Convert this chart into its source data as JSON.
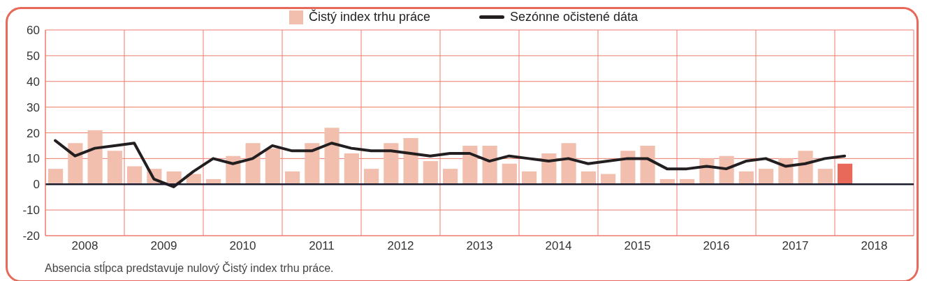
{
  "chart_data": {
    "type": "bar",
    "x": [
      2008.125,
      2008.375,
      2008.625,
      2008.875,
      2009.125,
      2009.375,
      2009.625,
      2009.875,
      2010.125,
      2010.375,
      2010.625,
      2010.875,
      2011.125,
      2011.375,
      2011.625,
      2011.875,
      2012.125,
      2012.375,
      2012.625,
      2012.875,
      2013.125,
      2013.375,
      2013.625,
      2013.875,
      2014.125,
      2014.375,
      2014.625,
      2014.875,
      2015.125,
      2015.375,
      2015.625,
      2015.875,
      2016.125,
      2016.375,
      2016.625,
      2016.875,
      2017.125,
      2017.375,
      2017.625,
      2017.875,
      2018.125
    ],
    "series": [
      {
        "name": "Čistý index trhu práce",
        "color": "#f2bfae",
        "colors": [
          "#f2bfae",
          "#f2bfae",
          "#f2bfae",
          "#f2bfae",
          "#f2bfae",
          "#f2bfae",
          "#f2bfae",
          "#f2bfae",
          "#f2bfae",
          "#f2bfae",
          "#f2bfae",
          "#f2bfae",
          "#f2bfae",
          "#f2bfae",
          "#f2bfae",
          "#f2bfae",
          "#f2bfae",
          "#f2bfae",
          "#f2bfae",
          "#f2bfae",
          "#f2bfae",
          "#f2bfae",
          "#f2bfae",
          "#f2bfae",
          "#f2bfae",
          "#f2bfae",
          "#f2bfae",
          "#f2bfae",
          "#f2bfae",
          "#f2bfae",
          "#f2bfae",
          "#f2bfae",
          "#f2bfae",
          "#f2bfae",
          "#f2bfae",
          "#f2bfae",
          "#f2bfae",
          "#f2bfae",
          "#f2bfae",
          "#f2bfae",
          "#e8695a"
        ],
        "values": [
          6,
          16,
          21,
          13,
          7,
          6,
          5,
          4,
          2,
          11,
          16,
          14,
          5,
          16,
          22,
          12,
          6,
          16,
          18,
          9,
          6,
          15,
          15,
          8,
          5,
          12,
          16,
          5,
          4,
          13,
          15,
          2,
          2,
          10,
          11,
          5,
          6,
          10,
          13,
          6,
          8
        ]
      },
      {
        "name": "Sezónne očistené dáta",
        "type": "line",
        "color": "#231f20",
        "values": [
          17,
          11,
          14,
          15,
          16,
          2,
          -1,
          5,
          10,
          8,
          10,
          15,
          13,
          13,
          16,
          14,
          13,
          13,
          12,
          11,
          12,
          12,
          9,
          11,
          10,
          9,
          10,
          8,
          9,
          10,
          10,
          6,
          6,
          7,
          6,
          9,
          10,
          7,
          8,
          10,
          11
        ]
      }
    ],
    "xlim": [
      2008,
      2019
    ],
    "xticks": [
      {
        "value": 2008,
        "label": null
      },
      {
        "value": 2008.5,
        "label": "2008"
      },
      {
        "value": 2009,
        "label": null
      },
      {
        "value": 2009.5,
        "label": "2009"
      },
      {
        "value": 2010,
        "label": null
      },
      {
        "value": 2010.5,
        "label": "2010"
      },
      {
        "value": 2011,
        "label": null
      },
      {
        "value": 2011.5,
        "label": "2011"
      },
      {
        "value": 2012,
        "label": null
      },
      {
        "value": 2012.5,
        "label": "2012"
      },
      {
        "value": 2013,
        "label": null
      },
      {
        "value": 2013.5,
        "label": "2013"
      },
      {
        "value": 2014,
        "label": null
      },
      {
        "value": 2014.5,
        "label": "2014"
      },
      {
        "value": 2015,
        "label": null
      },
      {
        "value": 2015.5,
        "label": "2015"
      },
      {
        "value": 2016,
        "label": null
      },
      {
        "value": 2016.5,
        "label": "2016"
      },
      {
        "value": 2017,
        "label": null
      },
      {
        "value": 2017.5,
        "label": "2017"
      },
      {
        "value": 2018,
        "label": null
      },
      {
        "value": 2018.5,
        "label": "2018"
      },
      {
        "value": 2019,
        "label": null
      }
    ],
    "ylim": [
      -20,
      60
    ],
    "yticks": [
      -20,
      -10,
      0,
      10,
      20,
      30,
      40,
      50,
      60
    ],
    "ref_lines": [
      {
        "axis": "y",
        "value": 0,
        "color": "#1a1a2e"
      }
    ],
    "grid": true,
    "legend": "top",
    "annotations": [
      "Absencia stĺpca predstavuje nulový Čistý index trhu práce."
    ]
  }
}
